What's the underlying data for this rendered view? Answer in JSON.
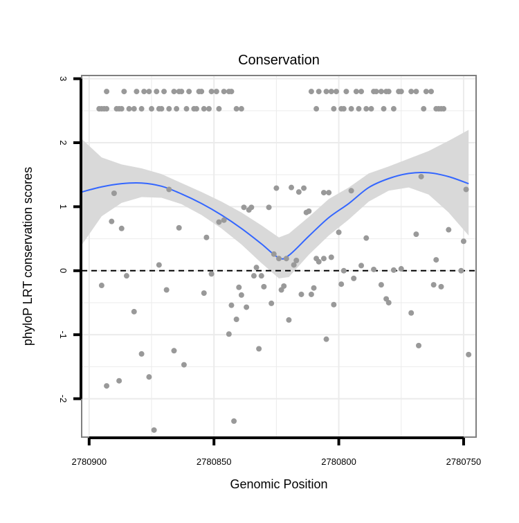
{
  "chart_data": {
    "type": "scatter",
    "title": "Conservation",
    "xlabel": "Genomic Position",
    "ylabel": "phyloP LRT conservation scores",
    "x_reversed": true,
    "xlim": [
      2780903,
      2780745
    ],
    "ylim": [
      -2.6,
      3.05
    ],
    "x_ticks": [
      2780900,
      2780850,
      2780800,
      2780750
    ],
    "x_tick_labels": [
      "2780900",
      "2780850",
      "2780800",
      "2780750"
    ],
    "y_ticks": [
      -2,
      -1,
      0,
      1,
      2,
      3
    ],
    "y_tick_labels": [
      "-2",
      "-1",
      "0",
      "1",
      "2",
      "3"
    ],
    "reference_line": {
      "y": 0,
      "style": "dashed",
      "color": "#000000"
    },
    "grid": true,
    "legend": "none",
    "colors": {
      "points": "#999999",
      "smooth_line": "#3366ff",
      "confidence_band": "#d9d9d9",
      "panel_border": "#7f7f7f",
      "grid": "#ebebeb"
    },
    "points": [
      [
        2780896,
        2.53
      ],
      [
        2780895,
        2.53
      ],
      [
        2780894,
        2.53
      ],
      [
        2780893,
        2.53
      ],
      [
        2780893,
        2.8
      ],
      [
        2780889,
        2.53
      ],
      [
        2780888,
        2.53
      ],
      [
        2780887,
        2.53
      ],
      [
        2780886,
        2.8
      ],
      [
        2780884,
        2.53
      ],
      [
        2780882,
        2.53
      ],
      [
        2780881,
        2.8
      ],
      [
        2780879,
        2.53
      ],
      [
        2780878,
        2.8
      ],
      [
        2780876,
        2.8
      ],
      [
        2780875,
        2.53
      ],
      [
        2780873,
        2.8
      ],
      [
        2780872,
        2.53
      ],
      [
        2780871,
        2.53
      ],
      [
        2780870,
        2.8
      ],
      [
        2780868,
        2.53
      ],
      [
        2780866,
        2.8
      ],
      [
        2780865,
        2.53
      ],
      [
        2780864,
        2.8
      ],
      [
        2780863,
        2.8
      ],
      [
        2780861,
        2.53
      ],
      [
        2780860,
        2.8
      ],
      [
        2780858,
        2.53
      ],
      [
        2780857,
        2.53
      ],
      [
        2780856,
        2.8
      ],
      [
        2780855,
        2.8
      ],
      [
        2780854,
        2.53
      ],
      [
        2780852,
        2.53
      ],
      [
        2780851,
        2.8
      ],
      [
        2780849,
        2.8
      ],
      [
        2780848,
        2.53
      ],
      [
        2780846,
        2.8
      ],
      [
        2780844,
        2.8
      ],
      [
        2780843,
        2.8
      ],
      [
        2780841,
        2.53
      ],
      [
        2780839,
        2.53
      ],
      [
        2780811,
        2.8
      ],
      [
        2780809,
        2.53
      ],
      [
        2780808,
        2.8
      ],
      [
        2780805,
        2.8
      ],
      [
        2780803,
        2.8
      ],
      [
        2780802,
        2.53
      ],
      [
        2780801,
        2.8
      ],
      [
        2780799,
        2.53
      ],
      [
        2780798,
        2.53
      ],
      [
        2780797,
        2.8
      ],
      [
        2780795,
        2.53
      ],
      [
        2780793,
        2.8
      ],
      [
        2780792,
        2.53
      ],
      [
        2780791,
        2.8
      ],
      [
        2780789,
        2.53
      ],
      [
        2780787,
        2.53
      ],
      [
        2780786,
        2.8
      ],
      [
        2780785,
        2.8
      ],
      [
        2780783,
        2.8
      ],
      [
        2780782,
        2.53
      ],
      [
        2780781,
        2.8
      ],
      [
        2780780,
        2.8
      ],
      [
        2780778,
        2.53
      ],
      [
        2780776,
        2.8
      ],
      [
        2780775,
        2.8
      ],
      [
        2780771,
        2.8
      ],
      [
        2780769,
        2.8
      ],
      [
        2780766,
        2.53
      ],
      [
        2780765,
        2.8
      ],
      [
        2780763,
        2.8
      ],
      [
        2780761,
        2.53
      ],
      [
        2780760,
        2.53
      ],
      [
        2780759,
        2.53
      ],
      [
        2780758,
        2.53
      ],
      [
        2780895,
        -0.23
      ],
      [
        2780893,
        -1.8
      ],
      [
        2780891,
        0.77
      ],
      [
        2780890,
        1.21
      ],
      [
        2780888,
        -1.72
      ],
      [
        2780887,
        0.66
      ],
      [
        2780885,
        -0.08
      ],
      [
        2780882,
        -0.64
      ],
      [
        2780879,
        -1.3
      ],
      [
        2780876,
        -1.66
      ],
      [
        2780874,
        -2.49
      ],
      [
        2780872,
        0.09
      ],
      [
        2780869,
        -0.3
      ],
      [
        2780868,
        1.27
      ],
      [
        2780866,
        -1.25
      ],
      [
        2780864,
        0.67
      ],
      [
        2780862,
        -1.47
      ],
      [
        2780854,
        -0.35
      ],
      [
        2780853,
        0.52
      ],
      [
        2780851,
        -0.05
      ],
      [
        2780848,
        0.76
      ],
      [
        2780846,
        0.79
      ],
      [
        2780844,
        -0.99
      ],
      [
        2780843,
        -0.54
      ],
      [
        2780842,
        -2.35
      ],
      [
        2780841,
        -0.76
      ],
      [
        2780840,
        -0.26
      ],
      [
        2780839,
        -0.38
      ],
      [
        2780838,
        0.99
      ],
      [
        2780837,
        -0.57
      ],
      [
        2780836,
        0.95
      ],
      [
        2780835,
        0.99
      ],
      [
        2780834,
        -0.08
      ],
      [
        2780833,
        0.05
      ],
      [
        2780832,
        -1.22
      ],
      [
        2780831,
        -0.08
      ],
      [
        2780830,
        -0.25
      ],
      [
        2780828,
        0.99
      ],
      [
        2780827,
        -0.51
      ],
      [
        2780826,
        0.26
      ],
      [
        2780825,
        1.29
      ],
      [
        2780824,
        0.19
      ],
      [
        2780823,
        -0.3
      ],
      [
        2780822,
        -0.24
      ],
      [
        2780821,
        0.19
      ],
      [
        2780820,
        -0.77
      ],
      [
        2780819,
        1.3
      ],
      [
        2780818,
        0.09
      ],
      [
        2780817,
        0.16
      ],
      [
        2780816,
        1.23
      ],
      [
        2780815,
        -0.37
      ],
      [
        2780814,
        1.29
      ],
      [
        2780813,
        0.91
      ],
      [
        2780812,
        0.93
      ],
      [
        2780811,
        -0.37
      ],
      [
        2780810,
        -0.27
      ],
      [
        2780809,
        0.19
      ],
      [
        2780808,
        0.14
      ],
      [
        2780806,
        0.19
      ],
      [
        2780806,
        1.22
      ],
      [
        2780805,
        -1.07
      ],
      [
        2780804,
        1.22
      ],
      [
        2780803,
        0.21
      ],
      [
        2780802,
        -0.53
      ],
      [
        2780800,
        0.6
      ],
      [
        2780799,
        -0.21
      ],
      [
        2780798,
        0.0
      ],
      [
        2780795,
        1.25
      ],
      [
        2780794,
        -0.12
      ],
      [
        2780791,
        0.08
      ],
      [
        2780789,
        0.51
      ],
      [
        2780786,
        0.02
      ],
      [
        2780783,
        -0.22
      ],
      [
        2780781,
        -0.44
      ],
      [
        2780780,
        -0.5
      ],
      [
        2780778,
        0.01
      ],
      [
        2780775,
        0.03
      ],
      [
        2780771,
        -0.66
      ],
      [
        2780769,
        0.57
      ],
      [
        2780768,
        -1.17
      ],
      [
        2780767,
        1.47
      ],
      [
        2780762,
        -0.22
      ],
      [
        2780761,
        0.17
      ],
      [
        2780759,
        -0.25
      ],
      [
        2780756,
        0.64
      ],
      [
        2780751,
        0.0
      ],
      [
        2780750,
        0.46
      ],
      [
        2780749,
        1.27
      ],
      [
        2780748,
        -1.31
      ]
    ],
    "smooth": {
      "x": [
        2780903,
        2780895,
        2780887,
        2780879,
        2780871,
        2780863,
        2780855,
        2780847,
        2780839,
        2780831,
        2780824,
        2780820,
        2780812,
        2780804,
        2780796,
        2780788,
        2780780,
        2780772,
        2780764,
        2780756,
        2780748
      ],
      "y": [
        1.23,
        1.31,
        1.36,
        1.37,
        1.32,
        1.2,
        1.05,
        0.87,
        0.66,
        0.42,
        0.2,
        0.24,
        0.54,
        0.83,
        1.05,
        1.3,
        1.44,
        1.52,
        1.53,
        1.47,
        1.36
      ],
      "lower": [
        0.4,
        0.85,
        1.06,
        1.15,
        1.14,
        1.04,
        0.87,
        0.66,
        0.41,
        0.12,
        -0.12,
        -0.1,
        0.25,
        0.55,
        0.8,
        1.08,
        1.25,
        1.3,
        1.19,
        0.91,
        0.55
      ],
      "upper": [
        2.06,
        1.77,
        1.66,
        1.6,
        1.51,
        1.37,
        1.23,
        1.08,
        0.91,
        0.71,
        0.52,
        0.58,
        0.84,
        1.12,
        1.3,
        1.52,
        1.63,
        1.75,
        1.87,
        2.03,
        2.2
      ]
    }
  }
}
